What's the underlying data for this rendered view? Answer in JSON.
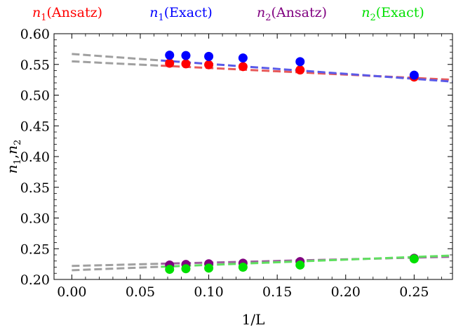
{
  "chart_data": {
    "type": "scatter",
    "title": "",
    "xlabel": "1/L",
    "ylabel_parts": [
      "n",
      "1",
      ",",
      "n",
      "2"
    ],
    "xlim": [
      -0.013,
      0.278
    ],
    "ylim": [
      0.2,
      0.6
    ],
    "x_ticks": [
      0.0,
      0.05,
      0.1,
      0.15,
      0.2,
      0.25
    ],
    "x_tick_labels": [
      "0.00",
      "0.05",
      "0.10",
      "0.15",
      "0.20",
      "0.25"
    ],
    "y_ticks": [
      0.2,
      0.25,
      0.3,
      0.35,
      0.4,
      0.45,
      0.5,
      0.55,
      0.6
    ],
    "y_tick_labels": [
      "0.20",
      "0.25",
      "0.30",
      "0.35",
      "0.40",
      "0.45",
      "0.50",
      "0.55",
      "0.60"
    ],
    "grid": false,
    "legend_position": "top",
    "series": [
      {
        "name": "n1(Ansatz)",
        "legend_label": {
          "base": "n",
          "sub": "1",
          "rest": "(Ansatz)"
        },
        "color": "#ff0000",
        "line_color": "#e85a5a",
        "x": [
          0.0714,
          0.0833,
          0.1,
          0.125,
          0.1667,
          0.25
        ],
        "y": [
          0.552,
          0.551,
          0.5495,
          0.5465,
          0.541,
          0.5295
        ],
        "fit_x": [
          0.0,
          0.278
        ],
        "fit_y": [
          0.555,
          0.525
        ]
      },
      {
        "name": "n1(Exact)",
        "legend_label": {
          "base": "n",
          "sub": "1",
          "rest": "(Exact)"
        },
        "color": "#0000ff",
        "line_color": "#5a5ae8",
        "x": [
          0.0714,
          0.0833,
          0.1,
          0.125,
          0.1667,
          0.25
        ],
        "y": [
          0.565,
          0.5645,
          0.563,
          0.5605,
          0.5545,
          0.5325
        ],
        "fit_x": [
          0.0,
          0.278
        ],
        "fit_y": [
          0.567,
          0.522
        ]
      },
      {
        "name": "n2(Ansatz)",
        "legend_label": {
          "base": "n",
          "sub": "2",
          "rest": "(Ansatz)"
        },
        "color": "#800080",
        "line_color": "#a060a0",
        "x": [
          0.0714,
          0.0833,
          0.1,
          0.125,
          0.1667,
          0.25
        ],
        "y": [
          0.2235,
          0.2245,
          0.2255,
          0.2265,
          0.229,
          0.2345
        ],
        "fit_x": [
          0.0,
          0.278
        ],
        "fit_y": [
          0.222,
          0.237
        ]
      },
      {
        "name": "n2(Exact)",
        "legend_label": {
          "base": "n",
          "sub": "2",
          "rest": "(Exact)"
        },
        "color": "#00e000",
        "line_color": "#60e060",
        "x": [
          0.0714,
          0.0833,
          0.1,
          0.125,
          0.1667,
          0.25
        ],
        "y": [
          0.2165,
          0.2175,
          0.2185,
          0.22,
          0.2235,
          0.2335
        ],
        "fit_x": [
          0.0,
          0.278
        ],
        "fit_y": [
          0.215,
          0.239
        ]
      }
    ]
  }
}
